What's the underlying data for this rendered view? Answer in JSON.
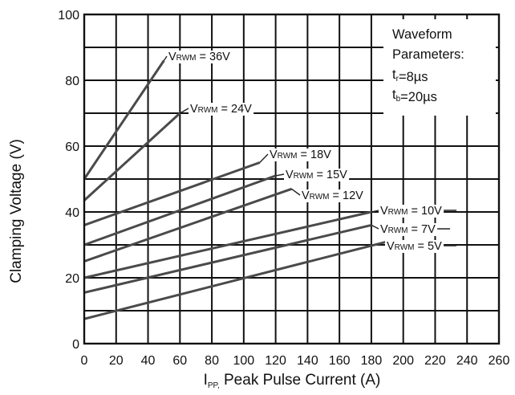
{
  "chart_data": {
    "type": "line",
    "xlabel_prefix": "I",
    "xlabel_sub": "PP,",
    "xlabel_rest": " Peak Pulse Current (A)",
    "ylabel": "Clamping Voltage (V)",
    "xlim": [
      0,
      260
    ],
    "ylim": [
      0,
      100
    ],
    "x_ticks": [
      0,
      20,
      40,
      60,
      80,
      100,
      120,
      140,
      160,
      180,
      200,
      220,
      240,
      260
    ],
    "y_ticks": [
      0,
      20,
      40,
      60,
      80,
      100
    ],
    "x_grid": [
      0,
      20,
      40,
      60,
      80,
      100,
      120,
      140,
      160,
      180,
      200,
      220,
      240,
      260
    ],
    "y_grid": [
      0,
      10,
      20,
      30,
      40,
      50,
      60,
      70,
      80,
      90,
      100
    ],
    "annotation": {
      "title": "Waveform",
      "subtitle": "Parameters:",
      "line1_prefix": "t",
      "line1_sub": "r",
      "line1_rest": "=8µs",
      "line2_prefix": "t",
      "line2_sub": "b",
      "line2_rest": "=20µs"
    },
    "series": [
      {
        "name": "VRWM = 36V",
        "label_head": "V",
        "label_sub": "RWM",
        "label_tail": " = 36V",
        "x": [
          0,
          50
        ],
        "y": [
          50,
          86
        ]
      },
      {
        "name": "VRWM = 24V",
        "label_head": "V",
        "label_sub": "RWM",
        "label_tail": " = 24V",
        "x": [
          0,
          60
        ],
        "y": [
          43.5,
          70
        ]
      },
      {
        "name": "VRWM = 18V",
        "label_head": "V",
        "label_sub": "RWM",
        "label_tail": " = 18V",
        "x": [
          0,
          110
        ],
        "y": [
          36,
          55
        ]
      },
      {
        "name": "VRWM = 15V",
        "label_head": "V",
        "label_sub": "RWM",
        "label_tail": " = 15V",
        "x": [
          0,
          120
        ],
        "y": [
          30,
          51
        ]
      },
      {
        "name": "VRWM = 12V",
        "label_head": "V",
        "label_sub": "RWM",
        "label_tail": " = 12V",
        "x": [
          0,
          130
        ],
        "y": [
          25,
          47
        ]
      },
      {
        "name": "VRWM = 10V",
        "label_head": "V",
        "label_sub": "RWM",
        "label_tail": " = 10V",
        "x": [
          0,
          180
        ],
        "y": [
          20,
          40
        ]
      },
      {
        "name": "VRWM = 7V",
        "label_head": "V",
        "label_sub": "RWM",
        "label_tail": " = 7V",
        "x": [
          0,
          180
        ],
        "y": [
          15.5,
          36
        ]
      },
      {
        "name": "VRWM = 5V",
        "label_head": "V",
        "label_sub": "RWM",
        "label_tail": " = 5V",
        "x": [
          0,
          190
        ],
        "y": [
          7.5,
          31
        ]
      }
    ]
  }
}
